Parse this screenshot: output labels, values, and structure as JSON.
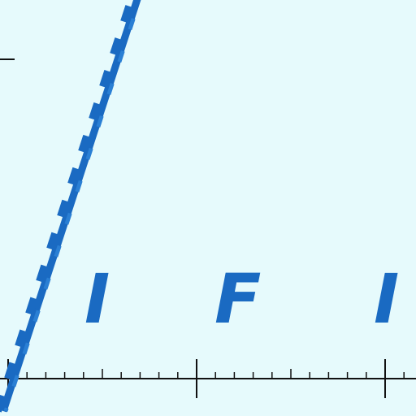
{
  "colors": {
    "background": "#e6fafc",
    "curve": "#1a6ac2",
    "axis": "#111111"
  },
  "chart_data": {
    "type": "line",
    "title": "",
    "xlabel": "",
    "ylabel": "",
    "grid": false,
    "annotations": [
      "I",
      "F",
      "I"
    ],
    "series": [
      {
        "style": "thick dashed",
        "x": [
          0,
          0.75
        ],
        "y": [
          0,
          2.1
        ]
      }
    ],
    "xlim": [
      0,
      2.15
    ],
    "x_major_ticks": [
      0,
      1,
      2
    ],
    "x_minor_per_major": 10,
    "tick_labels_visible": false
  }
}
